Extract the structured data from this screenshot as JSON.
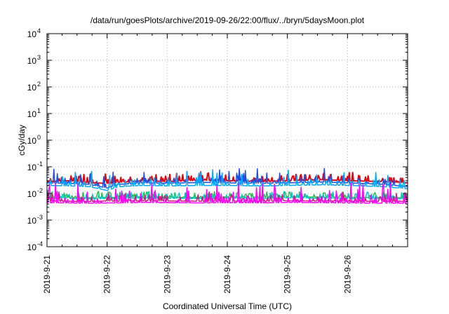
{
  "chart_data": {
    "type": "line",
    "title": "/data/run/goesPlots/archive/2019-09-26/22:00/flux/../bryn/5daysMoon.plot",
    "xlabel": "Coordinated Universal Time (UTC)",
    "ylabel": "cGy/day",
    "scale_y": "log",
    "ylim": [
      0.0001,
      10000
    ],
    "y_ticks": [
      {
        "value": 0.0001,
        "base": "10",
        "exp": "-4"
      },
      {
        "value": 0.001,
        "base": "10",
        "exp": "-3"
      },
      {
        "value": 0.01,
        "base": "10",
        "exp": "-2"
      },
      {
        "value": 0.1,
        "base": "10",
        "exp": "-1"
      },
      {
        "value": 1,
        "base": "10",
        "exp": "0"
      },
      {
        "value": 10,
        "base": "10",
        "exp": "1"
      },
      {
        "value": 100,
        "base": "10",
        "exp": "2"
      },
      {
        "value": 1000,
        "base": "10",
        "exp": "3"
      },
      {
        "value": 10000,
        "base": "10",
        "exp": "4"
      }
    ],
    "x_ticks": [
      "2019-9-21",
      "2019-9-22",
      "2019-9-23",
      "2019-9-24",
      "2019-9-25",
      "2019-9-26"
    ],
    "xlim": [
      "2019-09-21T00:00",
      "2019-09-27T00:00"
    ],
    "grid": true,
    "series": [
      {
        "color": "#e8000b",
        "values": [
          [
            0.0,
            0.028
          ],
          [
            0.4,
            0.03
          ],
          [
            0.7,
            0.025
          ],
          [
            1.0,
            0.024
          ],
          [
            1.2,
            0.026
          ],
          [
            1.6,
            0.03
          ],
          [
            2.0,
            0.028
          ],
          [
            2.6,
            0.032
          ],
          [
            3.0,
            0.03
          ],
          [
            3.6,
            0.028
          ],
          [
            4.0,
            0.03
          ],
          [
            4.6,
            0.033
          ],
          [
            5.0,
            0.03
          ],
          [
            5.6,
            0.028
          ],
          [
            6.0,
            0.025
          ]
        ]
      },
      {
        "color": "#1f4fe0",
        "values": [
          [
            0.0,
            0.025
          ],
          [
            0.4,
            0.024
          ],
          [
            0.7,
            0.022
          ],
          [
            1.0,
            0.016
          ],
          [
            1.2,
            0.022
          ],
          [
            1.6,
            0.025
          ],
          [
            2.0,
            0.024
          ],
          [
            2.6,
            0.026
          ],
          [
            3.0,
            0.025
          ],
          [
            3.6,
            0.024
          ],
          [
            4.0,
            0.025
          ],
          [
            4.6,
            0.027
          ],
          [
            5.0,
            0.025
          ],
          [
            5.6,
            0.022
          ],
          [
            6.0,
            0.018
          ]
        ]
      },
      {
        "color": "#00a8ff",
        "values": [
          [
            0.0,
            0.02
          ],
          [
            0.4,
            0.019
          ],
          [
            0.7,
            0.018
          ],
          [
            1.0,
            0.013
          ],
          [
            1.2,
            0.018
          ],
          [
            1.6,
            0.02
          ],
          [
            2.0,
            0.019
          ],
          [
            2.6,
            0.02
          ],
          [
            3.0,
            0.02
          ],
          [
            3.6,
            0.019
          ],
          [
            4.0,
            0.02
          ],
          [
            4.6,
            0.021
          ],
          [
            5.0,
            0.02
          ],
          [
            5.6,
            0.018
          ],
          [
            6.0,
            0.015
          ]
        ]
      },
      {
        "color": "#20c050",
        "values": [
          [
            0.0,
            0.0075
          ],
          [
            0.4,
            0.007
          ],
          [
            0.7,
            0.0068
          ],
          [
            1.0,
            0.0072
          ],
          [
            1.2,
            0.007
          ],
          [
            1.6,
            0.0075
          ],
          [
            2.0,
            0.0072
          ],
          [
            2.6,
            0.007
          ],
          [
            3.0,
            0.0074
          ],
          [
            3.6,
            0.0072
          ],
          [
            4.0,
            0.0075
          ],
          [
            4.6,
            0.0073
          ],
          [
            5.0,
            0.0072
          ],
          [
            5.6,
            0.007
          ],
          [
            6.0,
            0.0068
          ]
        ]
      },
      {
        "color": "#00c8c8",
        "values": [
          [
            0.0,
            0.0068
          ],
          [
            0.4,
            0.0064
          ],
          [
            0.7,
            0.0062
          ],
          [
            1.0,
            0.0065
          ],
          [
            1.2,
            0.0063
          ],
          [
            1.6,
            0.0068
          ],
          [
            2.0,
            0.0066
          ],
          [
            2.6,
            0.0064
          ],
          [
            3.0,
            0.0067
          ],
          [
            3.6,
            0.0065
          ],
          [
            4.0,
            0.0068
          ],
          [
            4.6,
            0.0066
          ],
          [
            5.0,
            0.0065
          ],
          [
            5.6,
            0.0063
          ],
          [
            6.0,
            0.0062
          ]
        ]
      },
      {
        "color": "#d01880",
        "values": [
          [
            0.0,
            0.0052
          ],
          [
            0.4,
            0.0051
          ],
          [
            0.7,
            0.005
          ],
          [
            1.0,
            0.0052
          ],
          [
            1.2,
            0.0051
          ],
          [
            1.6,
            0.0053
          ],
          [
            2.0,
            0.0052
          ],
          [
            2.6,
            0.0051
          ],
          [
            3.0,
            0.0052
          ],
          [
            3.6,
            0.0051
          ],
          [
            4.0,
            0.0053
          ],
          [
            4.6,
            0.0052
          ],
          [
            5.0,
            0.0051
          ],
          [
            5.6,
            0.005
          ],
          [
            6.0,
            0.005
          ]
        ]
      },
      {
        "color": "#ff00ff",
        "values": [
          [
            0.0,
            0.0045
          ],
          [
            0.4,
            0.0044
          ],
          [
            0.7,
            0.0043
          ],
          [
            1.0,
            0.0044
          ],
          [
            1.2,
            0.0044
          ],
          [
            1.6,
            0.0046
          ],
          [
            2.0,
            0.0045
          ],
          [
            2.6,
            0.0044
          ],
          [
            3.0,
            0.0045
          ],
          [
            3.6,
            0.0044
          ],
          [
            4.0,
            0.0046
          ],
          [
            4.6,
            0.0045
          ],
          [
            5.0,
            0.0044
          ],
          [
            5.6,
            0.0043
          ],
          [
            6.0,
            0.0043
          ]
        ]
      }
    ]
  }
}
